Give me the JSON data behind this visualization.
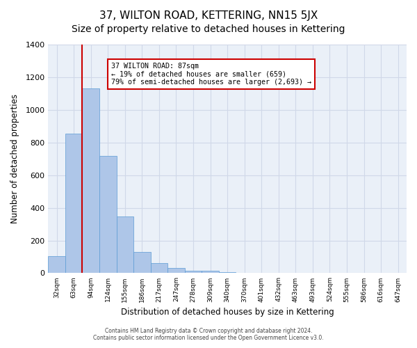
{
  "title": "37, WILTON ROAD, KETTERING, NN15 5JX",
  "subtitle": "Size of property relative to detached houses in Kettering",
  "xlabel": "Distribution of detached houses by size in Kettering",
  "ylabel": "Number of detached properties",
  "bar_values": [
    105,
    855,
    1130,
    720,
    345,
    130,
    60,
    30,
    15,
    15,
    5,
    0,
    0,
    0,
    0,
    0,
    0,
    0,
    0,
    0,
    0
  ],
  "bar_labels": [
    "32sqm",
    "63sqm",
    "94sqm",
    "124sqm",
    "155sqm",
    "186sqm",
    "217sqm",
    "247sqm",
    "278sqm",
    "309sqm",
    "340sqm",
    "370sqm",
    "401sqm",
    "432sqm",
    "463sqm",
    "493sqm",
    "524sqm",
    "555sqm",
    "586sqm",
    "616sqm",
    "647sqm"
  ],
  "bar_color": "#aec6e8",
  "bar_edge_color": "#5b9bd5",
  "vline_color": "#cc0000",
  "annotation_title": "37 WILTON ROAD: 87sqm",
  "annotation_line1": "← 19% of detached houses are smaller (659)",
  "annotation_line2": "79% of semi-detached houses are larger (2,693) →",
  "annotation_box_color": "#ffffff",
  "annotation_box_edge_color": "#cc0000",
  "ylim": [
    0,
    1400
  ],
  "yticks": [
    0,
    200,
    400,
    600,
    800,
    1000,
    1200,
    1400
  ],
  "grid_color": "#d0d8e8",
  "bg_color": "#eaf0f8",
  "footer_line1": "Contains HM Land Registry data © Crown copyright and database right 2024.",
  "footer_line2": "Contains public sector information licensed under the Open Government Licence v3.0.",
  "title_fontsize": 11,
  "subtitle_fontsize": 10
}
